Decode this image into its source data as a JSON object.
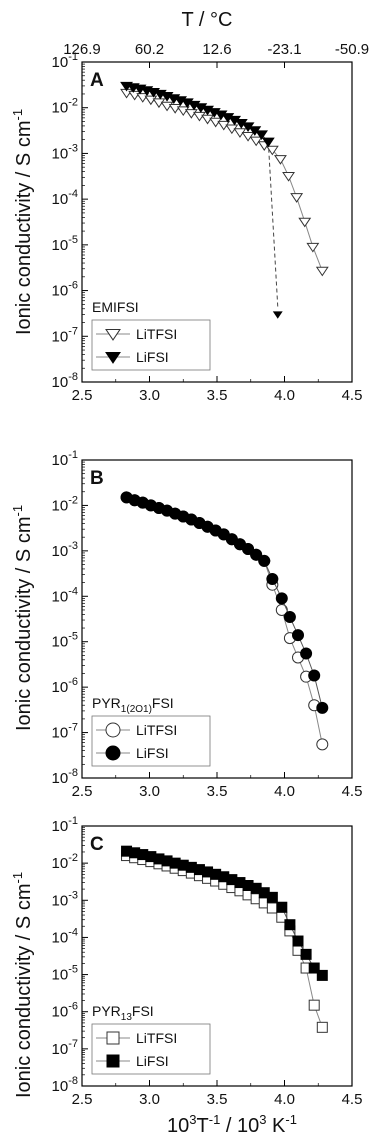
{
  "top_axis": {
    "title": "T / °C",
    "ticks": [
      "126.9",
      "60.2",
      "12.6",
      "-23.1",
      "-50.9"
    ],
    "tick_positions_x": [
      2.5,
      3.0,
      3.5,
      4.0,
      4.5
    ]
  },
  "x_axis": {
    "title_main": "10",
    "title_sup1": "3",
    "title_mid": "T",
    "title_sup2": "-1",
    "title_rest": " / 10",
    "title_sup3": "3",
    "title_end": " K",
    "title_sup4": "-1"
  },
  "y_axis": {
    "title_main": "Ionic conductivity / S cm",
    "title_sup": "-1"
  },
  "y_ticks": [
    {
      "exp": "-1"
    },
    {
      "exp": "-2"
    },
    {
      "exp": "-3"
    },
    {
      "exp": "-4"
    },
    {
      "exp": "-5"
    },
    {
      "exp": "-6"
    },
    {
      "exp": "-7"
    },
    {
      "exp": "-8"
    }
  ],
  "y_tick_base": "10",
  "colors": {
    "axis": "#000000",
    "line_open": "#888888",
    "line_filled": "#555555",
    "arrow": "#444444"
  },
  "chart_data": [
    {
      "type": "scatter",
      "panel": "A",
      "legend_title": "EMIFSI",
      "legend_title_sub": "",
      "legend_title_rest": "",
      "xlim": [
        2.5,
        4.5
      ],
      "ylim_log10": [
        -8,
        -1
      ],
      "y_scale": "log",
      "x_ticks": [
        "2.5",
        "3.0",
        "3.5",
        "4.0",
        "4.5"
      ],
      "series": [
        {
          "name": "LiTFSI",
          "marker": "triangle-down-open",
          "x": [
            2.83,
            2.89,
            2.95,
            3.01,
            3.07,
            3.13,
            3.19,
            3.25,
            3.31,
            3.37,
            3.43,
            3.49,
            3.55,
            3.61,
            3.67,
            3.73,
            3.79,
            3.85,
            3.91,
            3.97,
            4.03,
            4.09,
            4.15,
            4.21,
            4.28
          ],
          "y": [
            0.021,
            0.019,
            0.017,
            0.015,
            0.013,
            0.011,
            0.0098,
            0.0087,
            0.0076,
            0.0066,
            0.0057,
            0.0049,
            0.0042,
            0.0035,
            0.0029,
            0.0024,
            0.0019,
            0.0015,
            0.0012,
            0.00075,
            0.00032,
            0.00011,
            3.2e-05,
            9e-06,
            2.7e-06
          ]
        },
        {
          "name": "LiFSI",
          "marker": "triangle-down-filled",
          "x": [
            2.83,
            2.88,
            2.93,
            2.98,
            3.03,
            3.08,
            3.13,
            3.18,
            3.23,
            3.28,
            3.33,
            3.38,
            3.43,
            3.48,
            3.53,
            3.58,
            3.63,
            3.68,
            3.73,
            3.78,
            3.83,
            3.88,
            3.95
          ],
          "y": [
            0.03,
            0.028,
            0.026,
            0.024,
            0.022,
            0.02,
            0.018,
            0.016,
            0.0145,
            0.013,
            0.0115,
            0.0102,
            0.009,
            0.008,
            0.0071,
            0.0062,
            0.0054,
            0.0046,
            0.0039,
            0.0032,
            0.0026,
            0.0018,
            3e-07
          ],
          "note": "last point shown with dashed arrow"
        }
      ]
    },
    {
      "type": "scatter",
      "panel": "B",
      "legend_title": "PYR",
      "legend_title_sub": "1(2O1)",
      "legend_title_rest": "FSI",
      "xlim": [
        2.5,
        4.5
      ],
      "ylim_log10": [
        -8,
        -1
      ],
      "y_scale": "log",
      "x_ticks": [
        "2.5",
        "3.0",
        "3.5",
        "4.0",
        "4.5"
      ],
      "series": [
        {
          "name": "LiTFSI",
          "marker": "circle-open",
          "x": [
            2.83,
            2.89,
            2.95,
            3.01,
            3.07,
            3.13,
            3.19,
            3.25,
            3.31,
            3.37,
            3.43,
            3.49,
            3.55,
            3.61,
            3.67,
            3.73,
            3.79,
            3.85,
            3.91,
            3.98,
            4.04,
            4.1,
            4.16,
            4.22,
            4.28
          ],
          "y": [
            0.015,
            0.013,
            0.0115,
            0.01,
            0.0088,
            0.0077,
            0.0066,
            0.0057,
            0.0049,
            0.0041,
            0.0034,
            0.0028,
            0.0023,
            0.0018,
            0.0014,
            0.0011,
            0.00082,
            0.0006,
            0.00018,
            5e-05,
            1.2e-05,
            4.5e-06,
            1.7e-06,
            4e-07,
            5.5e-08
          ]
        },
        {
          "name": "LiFSI",
          "marker": "circle-filled",
          "x": [
            2.83,
            2.89,
            2.95,
            3.01,
            3.07,
            3.13,
            3.19,
            3.25,
            3.31,
            3.37,
            3.43,
            3.49,
            3.55,
            3.61,
            3.67,
            3.73,
            3.79,
            3.85,
            3.91,
            3.98,
            4.04,
            4.1,
            4.16,
            4.22,
            4.28
          ],
          "y": [
            0.015,
            0.013,
            0.0115,
            0.01,
            0.0088,
            0.0077,
            0.0066,
            0.0057,
            0.0049,
            0.0041,
            0.0034,
            0.0028,
            0.0023,
            0.0018,
            0.0014,
            0.0011,
            0.00082,
            0.0006,
            0.00024,
            9e-05,
            3.5e-05,
            1.4e-05,
            5.5e-06,
            1.8e-06,
            3.5e-07
          ]
        }
      ]
    },
    {
      "type": "scatter",
      "panel": "C",
      "legend_title": "PYR",
      "legend_title_sub": "13",
      "legend_title_rest": "FSI",
      "xlim": [
        2.5,
        4.5
      ],
      "ylim_log10": [
        -8,
        -1
      ],
      "y_scale": "log",
      "x_ticks": [
        "2.5",
        "3.0",
        "3.5",
        "4.0",
        "4.5"
      ],
      "series": [
        {
          "name": "LiTFSI",
          "marker": "square-open",
          "x": [
            2.83,
            2.89,
            2.95,
            3.01,
            3.07,
            3.13,
            3.19,
            3.25,
            3.31,
            3.37,
            3.43,
            3.49,
            3.55,
            3.61,
            3.67,
            3.73,
            3.79,
            3.85,
            3.91,
            3.98,
            4.04,
            4.1,
            4.16,
            4.22,
            4.28
          ],
          "y": [
            0.016,
            0.014,
            0.0125,
            0.011,
            0.0096,
            0.0084,
            0.0073,
            0.0063,
            0.0054,
            0.0046,
            0.0039,
            0.0033,
            0.0027,
            0.0022,
            0.0018,
            0.0014,
            0.0011,
            0.00085,
            0.00062,
            0.00035,
            0.00015,
            4.5e-05,
            1.5e-05,
            1.5e-06,
            3.8e-07
          ]
        },
        {
          "name": "LiFSI",
          "marker": "square-filled",
          "x": [
            2.83,
            2.89,
            2.95,
            3.01,
            3.07,
            3.13,
            3.19,
            3.25,
            3.31,
            3.37,
            3.43,
            3.49,
            3.55,
            3.61,
            3.67,
            3.73,
            3.79,
            3.85,
            3.91,
            3.98,
            4.04,
            4.1,
            4.16,
            4.22,
            4.28
          ],
          "y": [
            0.021,
            0.019,
            0.017,
            0.015,
            0.013,
            0.0115,
            0.01,
            0.0088,
            0.0077,
            0.0067,
            0.0058,
            0.005,
            0.0043,
            0.0036,
            0.003,
            0.0025,
            0.0021,
            0.0016,
            0.0012,
            0.00065,
            0.00022,
            8e-05,
            3.5e-05,
            1.5e-05,
            9.5e-06
          ]
        }
      ]
    }
  ]
}
